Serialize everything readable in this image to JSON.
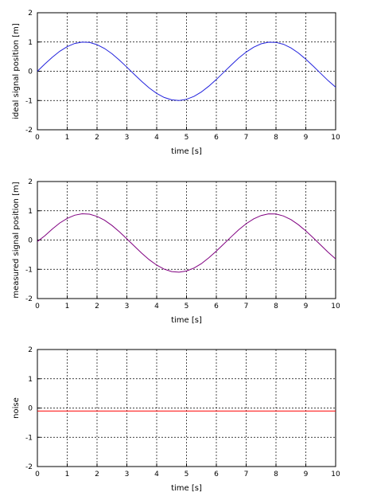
{
  "chart_data": [
    {
      "type": "line",
      "xlabel": "time [s]",
      "ylabel": "ideal signal position [m]",
      "xlim": [
        0,
        10
      ],
      "ylim": [
        -2,
        2
      ],
      "xticks": [
        "0",
        "1",
        "2",
        "3",
        "4",
        "5",
        "6",
        "7",
        "8",
        "9",
        "10"
      ],
      "yticks": [
        "-2",
        "-1",
        "0",
        "1",
        "2"
      ],
      "grid": true,
      "series": [
        {
          "color": "#2222dd",
          "x": [
            0,
            0.25,
            0.5,
            0.75,
            1,
            1.25,
            1.5,
            1.75,
            2,
            2.25,
            2.5,
            2.75,
            3,
            3.25,
            3.5,
            3.75,
            4,
            4.25,
            4.5,
            4.75,
            5,
            5.25,
            5.5,
            5.75,
            6,
            6.25,
            6.5,
            6.75,
            7,
            7.25,
            7.5,
            7.75,
            8,
            8.25,
            8.5,
            8.75,
            9,
            9.25,
            9.5,
            9.75,
            10
          ],
          "y": [
            0,
            0.247,
            0.479,
            0.682,
            0.841,
            0.949,
            0.997,
            0.984,
            0.909,
            0.778,
            0.598,
            0.382,
            0.141,
            -0.108,
            -0.351,
            -0.572,
            -0.757,
            -0.895,
            -0.978,
            -0.999,
            -0.959,
            -0.859,
            -0.706,
            -0.508,
            -0.279,
            -0.033,
            0.215,
            0.451,
            0.657,
            0.823,
            0.938,
            0.994,
            0.989,
            0.923,
            0.798,
            0.625,
            0.412,
            0.174,
            -0.075,
            -0.32,
            -0.544
          ]
        }
      ]
    },
    {
      "type": "line",
      "xlabel": "time [s]",
      "ylabel": "measured signal position [m]",
      "xlim": [
        0,
        10
      ],
      "ylim": [
        -2,
        2
      ],
      "xticks": [
        "0",
        "1",
        "2",
        "3",
        "4",
        "5",
        "6",
        "7",
        "8",
        "9",
        "10"
      ],
      "yticks": [
        "-2",
        "-1",
        "0",
        "1",
        "2"
      ],
      "grid": true,
      "series": [
        {
          "color": "#800080",
          "x": [
            0,
            0.25,
            0.5,
            0.75,
            1,
            1.25,
            1.5,
            1.75,
            2,
            2.25,
            2.5,
            2.75,
            3,
            3.25,
            3.5,
            3.75,
            4,
            4.25,
            4.5,
            4.75,
            5,
            5.25,
            5.5,
            5.75,
            6,
            6.25,
            6.5,
            6.75,
            7,
            7.25,
            7.5,
            7.75,
            8,
            8.25,
            8.5,
            8.75,
            9,
            9.25,
            9.5,
            9.75,
            10
          ],
          "y": [
            -0.05,
            0.147,
            0.379,
            0.582,
            0.741,
            0.849,
            0.897,
            0.884,
            0.809,
            0.678,
            0.498,
            0.282,
            0.041,
            -0.208,
            -0.451,
            -0.672,
            -0.857,
            -0.995,
            -1.078,
            -1.099,
            -1.059,
            -0.959,
            -0.806,
            -0.608,
            -0.379,
            -0.133,
            0.115,
            0.351,
            0.557,
            0.723,
            0.838,
            0.894,
            0.889,
            0.823,
            0.698,
            0.525,
            0.312,
            0.074,
            -0.175,
            -0.42,
            -0.644
          ]
        }
      ]
    },
    {
      "type": "line",
      "xlabel": "time [s]",
      "ylabel": "noise",
      "xlim": [
        0,
        10
      ],
      "ylim": [
        -2,
        2
      ],
      "xticks": [
        "0",
        "1",
        "2",
        "3",
        "4",
        "5",
        "6",
        "7",
        "8",
        "9",
        "10"
      ],
      "yticks": [
        "-2",
        "-1",
        "0",
        "1",
        "2"
      ],
      "grid": true,
      "series": [
        {
          "color": "#ff0000",
          "x": [
            0,
            0.25,
            0.5,
            0.75,
            1,
            1.25,
            1.5,
            1.75,
            2,
            2.25,
            2.5,
            2.75,
            3,
            3.25,
            3.5,
            3.75,
            4,
            4.25,
            4.5,
            4.75,
            5,
            5.25,
            5.5,
            5.75,
            6,
            6.25,
            6.5,
            6.75,
            7,
            7.25,
            7.5,
            7.75,
            8,
            8.25,
            8.5,
            8.75,
            9,
            9.25,
            9.5,
            9.75,
            10
          ],
          "y": [
            -0.1,
            -0.1,
            -0.1,
            -0.1,
            -0.1,
            -0.1,
            -0.1,
            -0.1,
            -0.1,
            -0.1,
            -0.1,
            -0.1,
            -0.1,
            -0.1,
            -0.1,
            -0.1,
            -0.1,
            -0.1,
            -0.1,
            -0.1,
            -0.1,
            -0.1,
            -0.1,
            -0.1,
            -0.1,
            -0.1,
            -0.1,
            -0.1,
            -0.1,
            -0.1,
            -0.1,
            -0.1,
            -0.1,
            -0.1,
            -0.1,
            -0.1,
            -0.1,
            -0.1,
            -0.1,
            -0.1,
            -0.1
          ]
        }
      ]
    }
  ]
}
